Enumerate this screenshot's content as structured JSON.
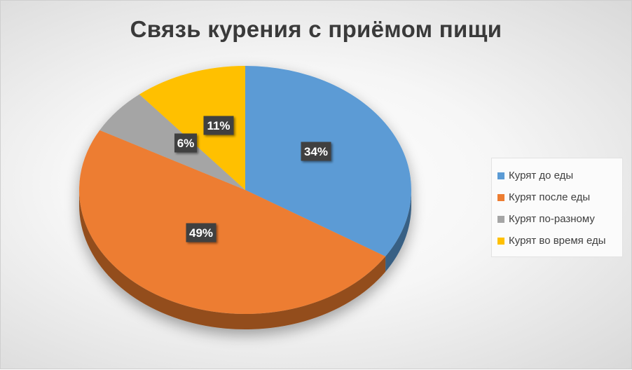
{
  "chart_data": {
    "type": "pie",
    "title": "Связь курения с приёмом пищи",
    "style": "3d",
    "legend_position": "right",
    "series": [
      {
        "categories": [
          "Курят до еды",
          "Курят после еды",
          "Курят по-разному",
          "Курят во время еды"
        ],
        "values": [
          34,
          49,
          6,
          11
        ],
        "labels": [
          "34%",
          "49%",
          "6%",
          "11%"
        ],
        "colors": [
          "#5B9BD5",
          "#ED7D31",
          "#A5A5A5",
          "#FFC000"
        ]
      }
    ]
  }
}
